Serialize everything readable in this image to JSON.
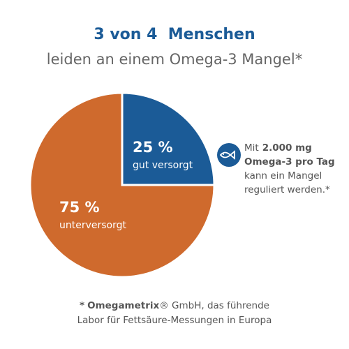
{
  "chart_data": {
    "type": "pie",
    "title": "3 von 4  Menschen",
    "subtitle": "leiden an einem Omega-3 Mangel*",
    "categories": [
      "gut versorgt",
      "unterversorgt"
    ],
    "values": [
      25,
      75
    ],
    "value_labels": [
      "25 %",
      "75 %"
    ],
    "colors": [
      "#1b5b97",
      "#cf6a2d"
    ],
    "annotation": [
      [
        "Mit",
        "2.000 mg"
      ],
      [
        "Omega-3 pro Tag"
      ],
      [
        "kann ein Mangel"
      ],
      [
        "reguliert werden.*"
      ]
    ],
    "footnote": [
      [
        "*",
        "Omegametrix",
        "® GmbH, das führende"
      ],
      [
        "Labor für Fettsäure-Messungen in Europa"
      ]
    ]
  }
}
